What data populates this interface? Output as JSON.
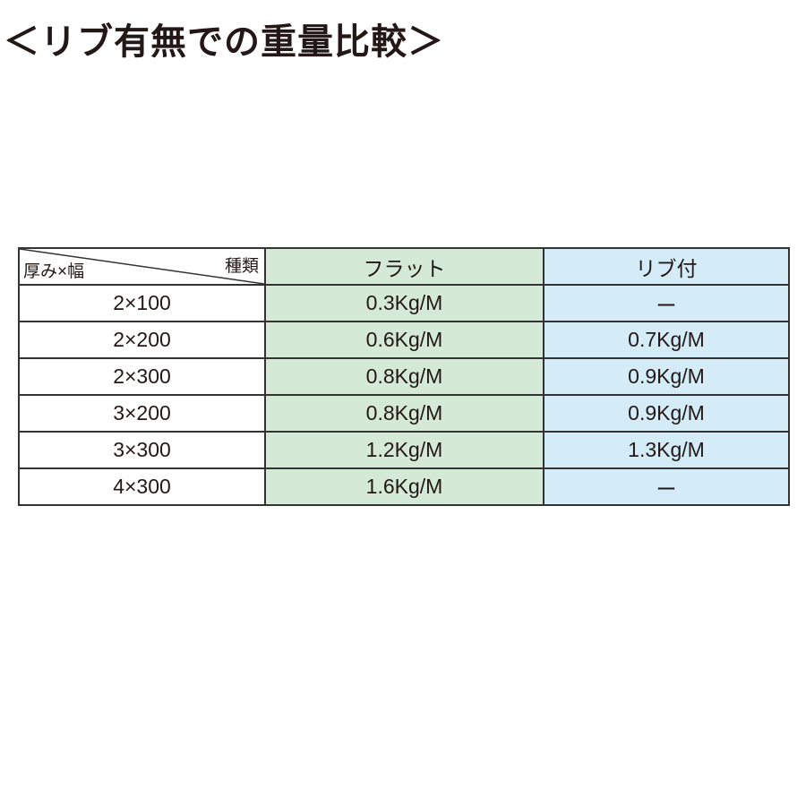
{
  "title": "＜リブ有無での重量比較＞",
  "table": {
    "corner_top": "種類",
    "corner_bottom": "厚み×幅",
    "headers": [
      "フラット",
      "リブ付"
    ],
    "rows": [
      [
        "2×100",
        "0.3Kg/M",
        "ー"
      ],
      [
        "2×200",
        "0.6Kg/M",
        "0.7Kg/M"
      ],
      [
        "2×300",
        "0.8Kg/M",
        "0.9Kg/M"
      ],
      [
        "3×200",
        "0.8Kg/M",
        "0.9Kg/M"
      ],
      [
        "3×300",
        "1.2Kg/M",
        "1.3Kg/M"
      ],
      [
        "4×300",
        "1.6Kg/M",
        "ー"
      ]
    ]
  },
  "colors": {
    "flat_column": "#d5ead6",
    "rib_column": "#d4ecf8"
  }
}
